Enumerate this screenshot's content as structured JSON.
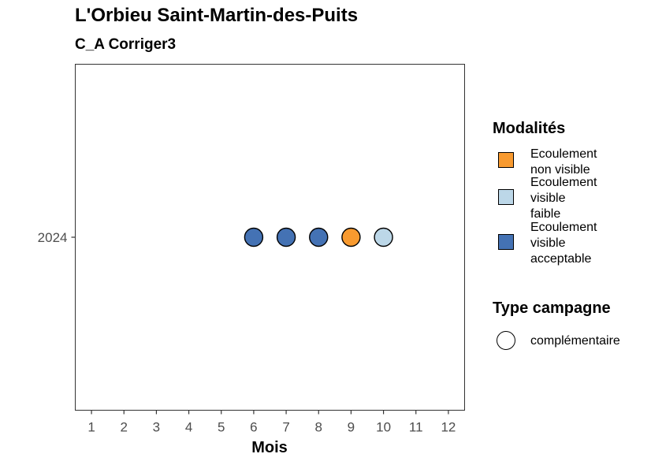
{
  "chart_data": {
    "type": "scatter",
    "title": "L'Orbieu Saint-Martin-des-Puits",
    "subtitle": "C_A Corriger3",
    "xlabel": "Mois",
    "ylabel": "",
    "x_ticks": [
      "1",
      "2",
      "3",
      "4",
      "5",
      "6",
      "7",
      "8",
      "9",
      "10",
      "11",
      "12"
    ],
    "xlim": [
      0.5,
      12.5
    ],
    "y_categories": [
      "2024"
    ],
    "grid": false,
    "legend_position": "right",
    "points": [
      {
        "x": 6,
        "y": "2024",
        "modalite": "Ecoulement visible acceptable",
        "type_campagne": "complémentaire"
      },
      {
        "x": 7,
        "y": "2024",
        "modalite": "Ecoulement visible acceptable",
        "type_campagne": "complémentaire"
      },
      {
        "x": 8,
        "y": "2024",
        "modalite": "Ecoulement visible acceptable",
        "type_campagne": "complémentaire"
      },
      {
        "x": 9,
        "y": "2024",
        "modalite": "Ecoulement non visible",
        "type_campagne": "complémentaire"
      },
      {
        "x": 10,
        "y": "2024",
        "modalite": "Ecoulement visible faible",
        "type_campagne": "complémentaire"
      }
    ],
    "legend_fill": {
      "title": "Modalités",
      "items": [
        {
          "label": "Ecoulement\nnon visible",
          "key": "Ecoulement non visible",
          "color": "#f89a2f"
        },
        {
          "label": "Ecoulement\nvisible\nfaible",
          "key": "Ecoulement visible faible",
          "color": "#bcd7e8"
        },
        {
          "label": "Ecoulement\nvisible\nacceptable",
          "key": "Ecoulement visible acceptable",
          "color": "#4472b4"
        }
      ]
    },
    "legend_shape": {
      "title": "Type campagne",
      "items": [
        {
          "label": "complémentaire",
          "shape": "circle"
        }
      ]
    }
  }
}
